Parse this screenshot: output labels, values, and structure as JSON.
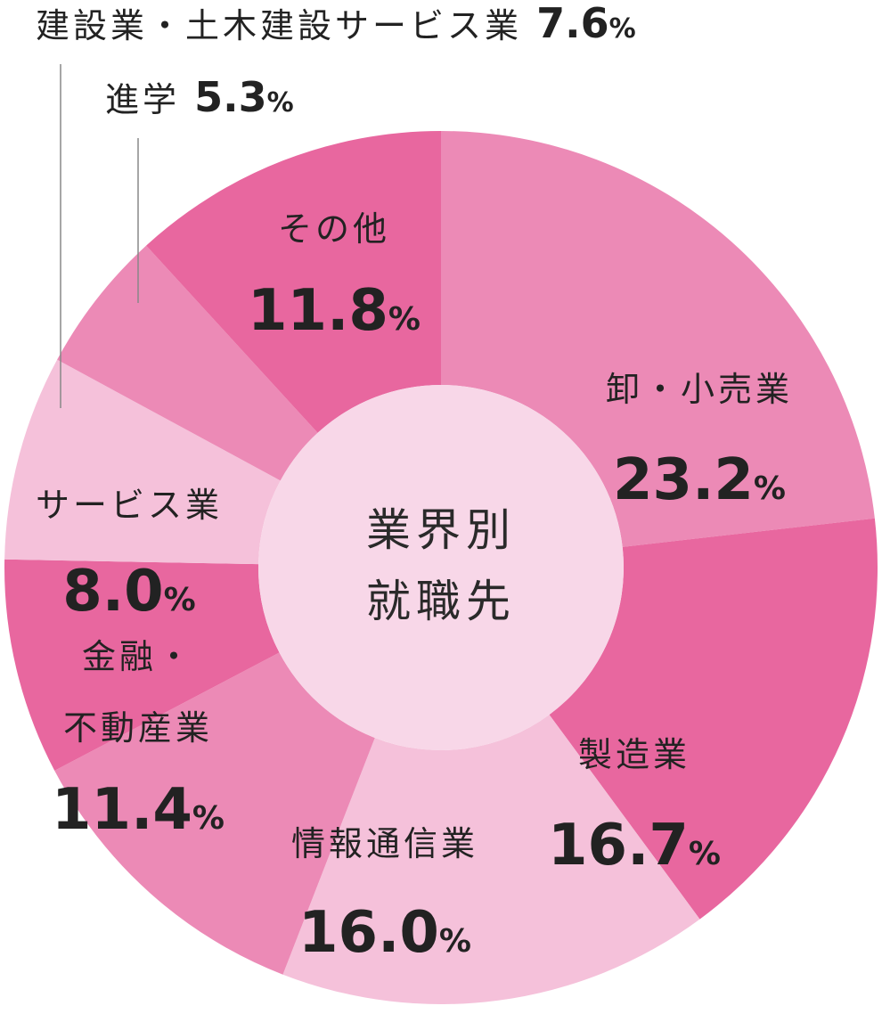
{
  "chart_data": {
    "type": "pie",
    "title": "",
    "center_label": [
      "業界別",
      "就職先"
    ],
    "slices": [
      {
        "label": "卸・小売業",
        "value": 23.2,
        "display": "23.2",
        "unit": "%",
        "color": "#ec8ab6"
      },
      {
        "label": "製造業",
        "value": 16.7,
        "display": "16.7",
        "unit": "%",
        "color": "#e8679f"
      },
      {
        "label": "情報通信業",
        "value": 16.0,
        "display": "16.0",
        "unit": "%",
        "color": "#f5c1da"
      },
      {
        "label": "金融・不動産業",
        "label_lines": [
          "金融・",
          "不動産業"
        ],
        "value": 11.4,
        "display": "11.4",
        "unit": "%",
        "color": "#ec8ab6"
      },
      {
        "label": "サービス業",
        "value": 8.0,
        "display": "8.0",
        "unit": "%",
        "color": "#e8679f"
      },
      {
        "label": "建設業・土木建設サービス業",
        "value": 7.6,
        "display": "7.6",
        "unit": "%",
        "color": "#f5c1da"
      },
      {
        "label": "進学",
        "value": 5.3,
        "display": "5.3",
        "unit": "%",
        "color": "#ec8ab6"
      },
      {
        "label": "その他",
        "value": 11.8,
        "display": "11.8",
        "unit": "%",
        "color": "#e8679f"
      }
    ],
    "center_color": "#f8d7e8",
    "leader_color": "#888888"
  }
}
